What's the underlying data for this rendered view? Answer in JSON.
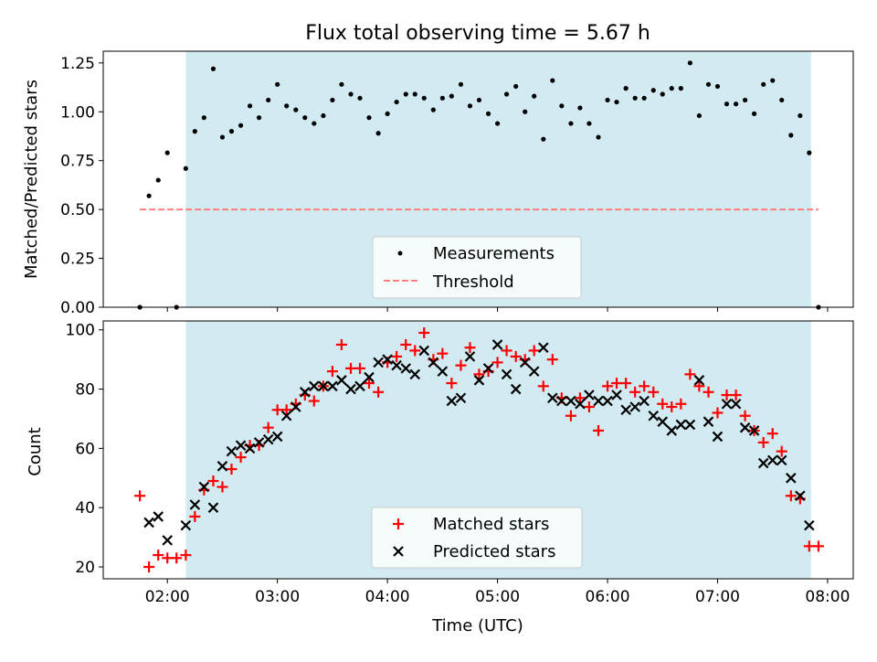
{
  "chart_data": [
    {
      "type": "scatter",
      "title": "Flux total observing time = 5.67 h",
      "xlabel": "",
      "ylabel": "Matched/Predicted stars",
      "ylim": [
        0.0,
        1.31
      ],
      "xlim": [
        1.417,
        8.233
      ],
      "yticks": [
        0.0,
        0.25,
        0.5,
        0.75,
        1.0,
        1.25
      ],
      "ytick_labels": [
        "0.00",
        "0.25",
        "0.50",
        "0.75",
        "1.00",
        "1.25"
      ],
      "xticks": [
        2,
        3,
        4,
        5,
        6,
        7,
        8
      ],
      "grid": false,
      "legend_placement": "lower-center",
      "colors": {
        "shade": "#add8e6",
        "measurement": "#000000",
        "threshold": "#ff7f7f"
      },
      "shaded_span": [
        2.167,
        7.85
      ],
      "series": [
        {
          "name": "Measurements",
          "marker": "dot",
          "x": [
            1.75,
            1.833,
            1.917,
            2.0,
            2.083,
            2.167,
            2.25,
            2.333,
            2.417,
            2.5,
            2.583,
            2.667,
            2.75,
            2.833,
            2.917,
            3.0,
            3.083,
            3.167,
            3.25,
            3.333,
            3.417,
            3.5,
            3.583,
            3.667,
            3.75,
            3.833,
            3.917,
            4.0,
            4.083,
            4.167,
            4.25,
            4.333,
            4.417,
            4.5,
            4.583,
            4.667,
            4.75,
            4.833,
            4.917,
            5.0,
            5.083,
            5.167,
            5.25,
            5.333,
            5.417,
            5.5,
            5.583,
            5.667,
            5.75,
            5.833,
            5.917,
            6.0,
            6.083,
            6.167,
            6.25,
            6.333,
            6.417,
            6.5,
            6.583,
            6.667,
            6.75,
            6.833,
            6.917,
            7.0,
            7.083,
            7.167,
            7.25,
            7.333,
            7.417,
            7.5,
            7.583,
            7.667,
            7.75,
            7.833,
            7.917
          ],
          "y": [
            0.0,
            0.57,
            0.65,
            0.79,
            0.0,
            0.71,
            0.9,
            0.97,
            1.22,
            0.87,
            0.9,
            0.93,
            1.03,
            0.97,
            1.06,
            1.14,
            1.03,
            1.01,
            0.97,
            0.94,
            0.98,
            1.06,
            1.14,
            1.09,
            1.07,
            0.97,
            0.89,
            0.99,
            1.05,
            1.09,
            1.09,
            1.07,
            1.01,
            1.07,
            1.08,
            1.14,
            1.03,
            1.06,
            0.99,
            0.94,
            1.09,
            1.13,
            1.0,
            1.08,
            0.86,
            1.16,
            1.03,
            0.94,
            1.02,
            0.94,
            0.87,
            1.06,
            1.05,
            1.12,
            1.07,
            1.07,
            1.11,
            1.09,
            1.12,
            1.12,
            1.25,
            0.98,
            1.14,
            1.13,
            1.04,
            1.04,
            1.06,
            0.99,
            1.14,
            1.16,
            1.06,
            0.88,
            0.98,
            0.79,
            0.0
          ]
        },
        {
          "name": "Threshold",
          "marker": "dashed-line",
          "x": [
            1.75,
            7.917
          ],
          "y": [
            0.5,
            0.5
          ]
        }
      ]
    },
    {
      "type": "scatter",
      "title": "",
      "xlabel": "Time (UTC)",
      "ylabel": "Count",
      "ylim": [
        16,
        103
      ],
      "xlim": [
        1.417,
        8.233
      ],
      "yticks": [
        20,
        40,
        60,
        80,
        100
      ],
      "ytick_labels": [
        "20",
        "40",
        "60",
        "80",
        "100"
      ],
      "xticks": [
        2,
        3,
        4,
        5,
        6,
        7,
        8
      ],
      "xtick_labels": [
        "02:00",
        "03:00",
        "04:00",
        "05:00",
        "06:00",
        "07:00",
        "08:00"
      ],
      "grid": false,
      "legend_placement": "lower-center",
      "colors": {
        "shade": "#add8e6",
        "matched": "#ff0000",
        "predicted": "#000000"
      },
      "shaded_span": [
        2.167,
        7.85
      ],
      "series": [
        {
          "name": "Matched stars",
          "marker": "plus",
          "x": [
            1.75,
            1.833,
            1.917,
            2.0,
            2.083,
            2.167,
            2.25,
            2.333,
            2.417,
            2.5,
            2.583,
            2.667,
            2.75,
            2.833,
            2.917,
            3.0,
            3.083,
            3.167,
            3.25,
            3.333,
            3.417,
            3.5,
            3.583,
            3.667,
            3.75,
            3.833,
            3.917,
            4.0,
            4.083,
            4.167,
            4.25,
            4.333,
            4.417,
            4.5,
            4.583,
            4.667,
            4.75,
            4.833,
            4.917,
            5.0,
            5.083,
            5.167,
            5.25,
            5.333,
            5.417,
            5.5,
            5.583,
            5.667,
            5.75,
            5.833,
            5.917,
            6.0,
            6.083,
            6.167,
            6.25,
            6.333,
            6.417,
            6.5,
            6.583,
            6.667,
            6.75,
            6.833,
            6.917,
            7.0,
            7.083,
            7.167,
            7.25,
            7.333,
            7.417,
            7.5,
            7.583,
            7.667,
            7.75,
            7.833,
            7.917
          ],
          "y": [
            44,
            20,
            24,
            23,
            23,
            24,
            37,
            46,
            49,
            47,
            53,
            57,
            61,
            61,
            67,
            73,
            73,
            75,
            78,
            76,
            81,
            86,
            95,
            87,
            87,
            82,
            79,
            89,
            91,
            95,
            93,
            99,
            90,
            92,
            82,
            88,
            94,
            85,
            86,
            89,
            93,
            91,
            90,
            93,
            81,
            90,
            77,
            71,
            77,
            74,
            66,
            81,
            82,
            82,
            79,
            81,
            79,
            75,
            74,
            75,
            85,
            81,
            79,
            72,
            78,
            78,
            71,
            66,
            62,
            65,
            59,
            44,
            43,
            27,
            27
          ]
        },
        {
          "name": "Predicted stars",
          "marker": "x",
          "x": [
            1.833,
            1.917,
            2.0,
            2.167,
            2.25,
            2.333,
            2.417,
            2.5,
            2.583,
            2.667,
            2.75,
            2.833,
            2.917,
            3.0,
            3.083,
            3.167,
            3.25,
            3.333,
            3.417,
            3.5,
            3.583,
            3.667,
            3.75,
            3.833,
            3.917,
            4.0,
            4.083,
            4.167,
            4.25,
            4.333,
            4.417,
            4.5,
            4.583,
            4.667,
            4.75,
            4.833,
            4.917,
            5.0,
            5.083,
            5.167,
            5.25,
            5.333,
            5.417,
            5.5,
            5.583,
            5.667,
            5.75,
            5.833,
            5.917,
            6.0,
            6.083,
            6.167,
            6.25,
            6.333,
            6.417,
            6.5,
            6.583,
            6.667,
            6.75,
            6.833,
            6.917,
            7.0,
            7.083,
            7.167,
            7.25,
            7.333,
            7.417,
            7.5,
            7.583,
            7.667,
            7.75,
            7.833
          ],
          "y": [
            35,
            37,
            29,
            34,
            41,
            47,
            40,
            54,
            59,
            61,
            60,
            62,
            63,
            64,
            71,
            74,
            79,
            81,
            81,
            81,
            83,
            80,
            81,
            84,
            89,
            90,
            88,
            87,
            85,
            93,
            89,
            86,
            76,
            77,
            91,
            83,
            87,
            95,
            85,
            80,
            89,
            86,
            94,
            77,
            76,
            76,
            75,
            78,
            76,
            76,
            78,
            73,
            74,
            76,
            71,
            69,
            66,
            68,
            68,
            83,
            69,
            64,
            75,
            75,
            67,
            66,
            55,
            56,
            56,
            50,
            44,
            34
          ]
        }
      ]
    }
  ]
}
